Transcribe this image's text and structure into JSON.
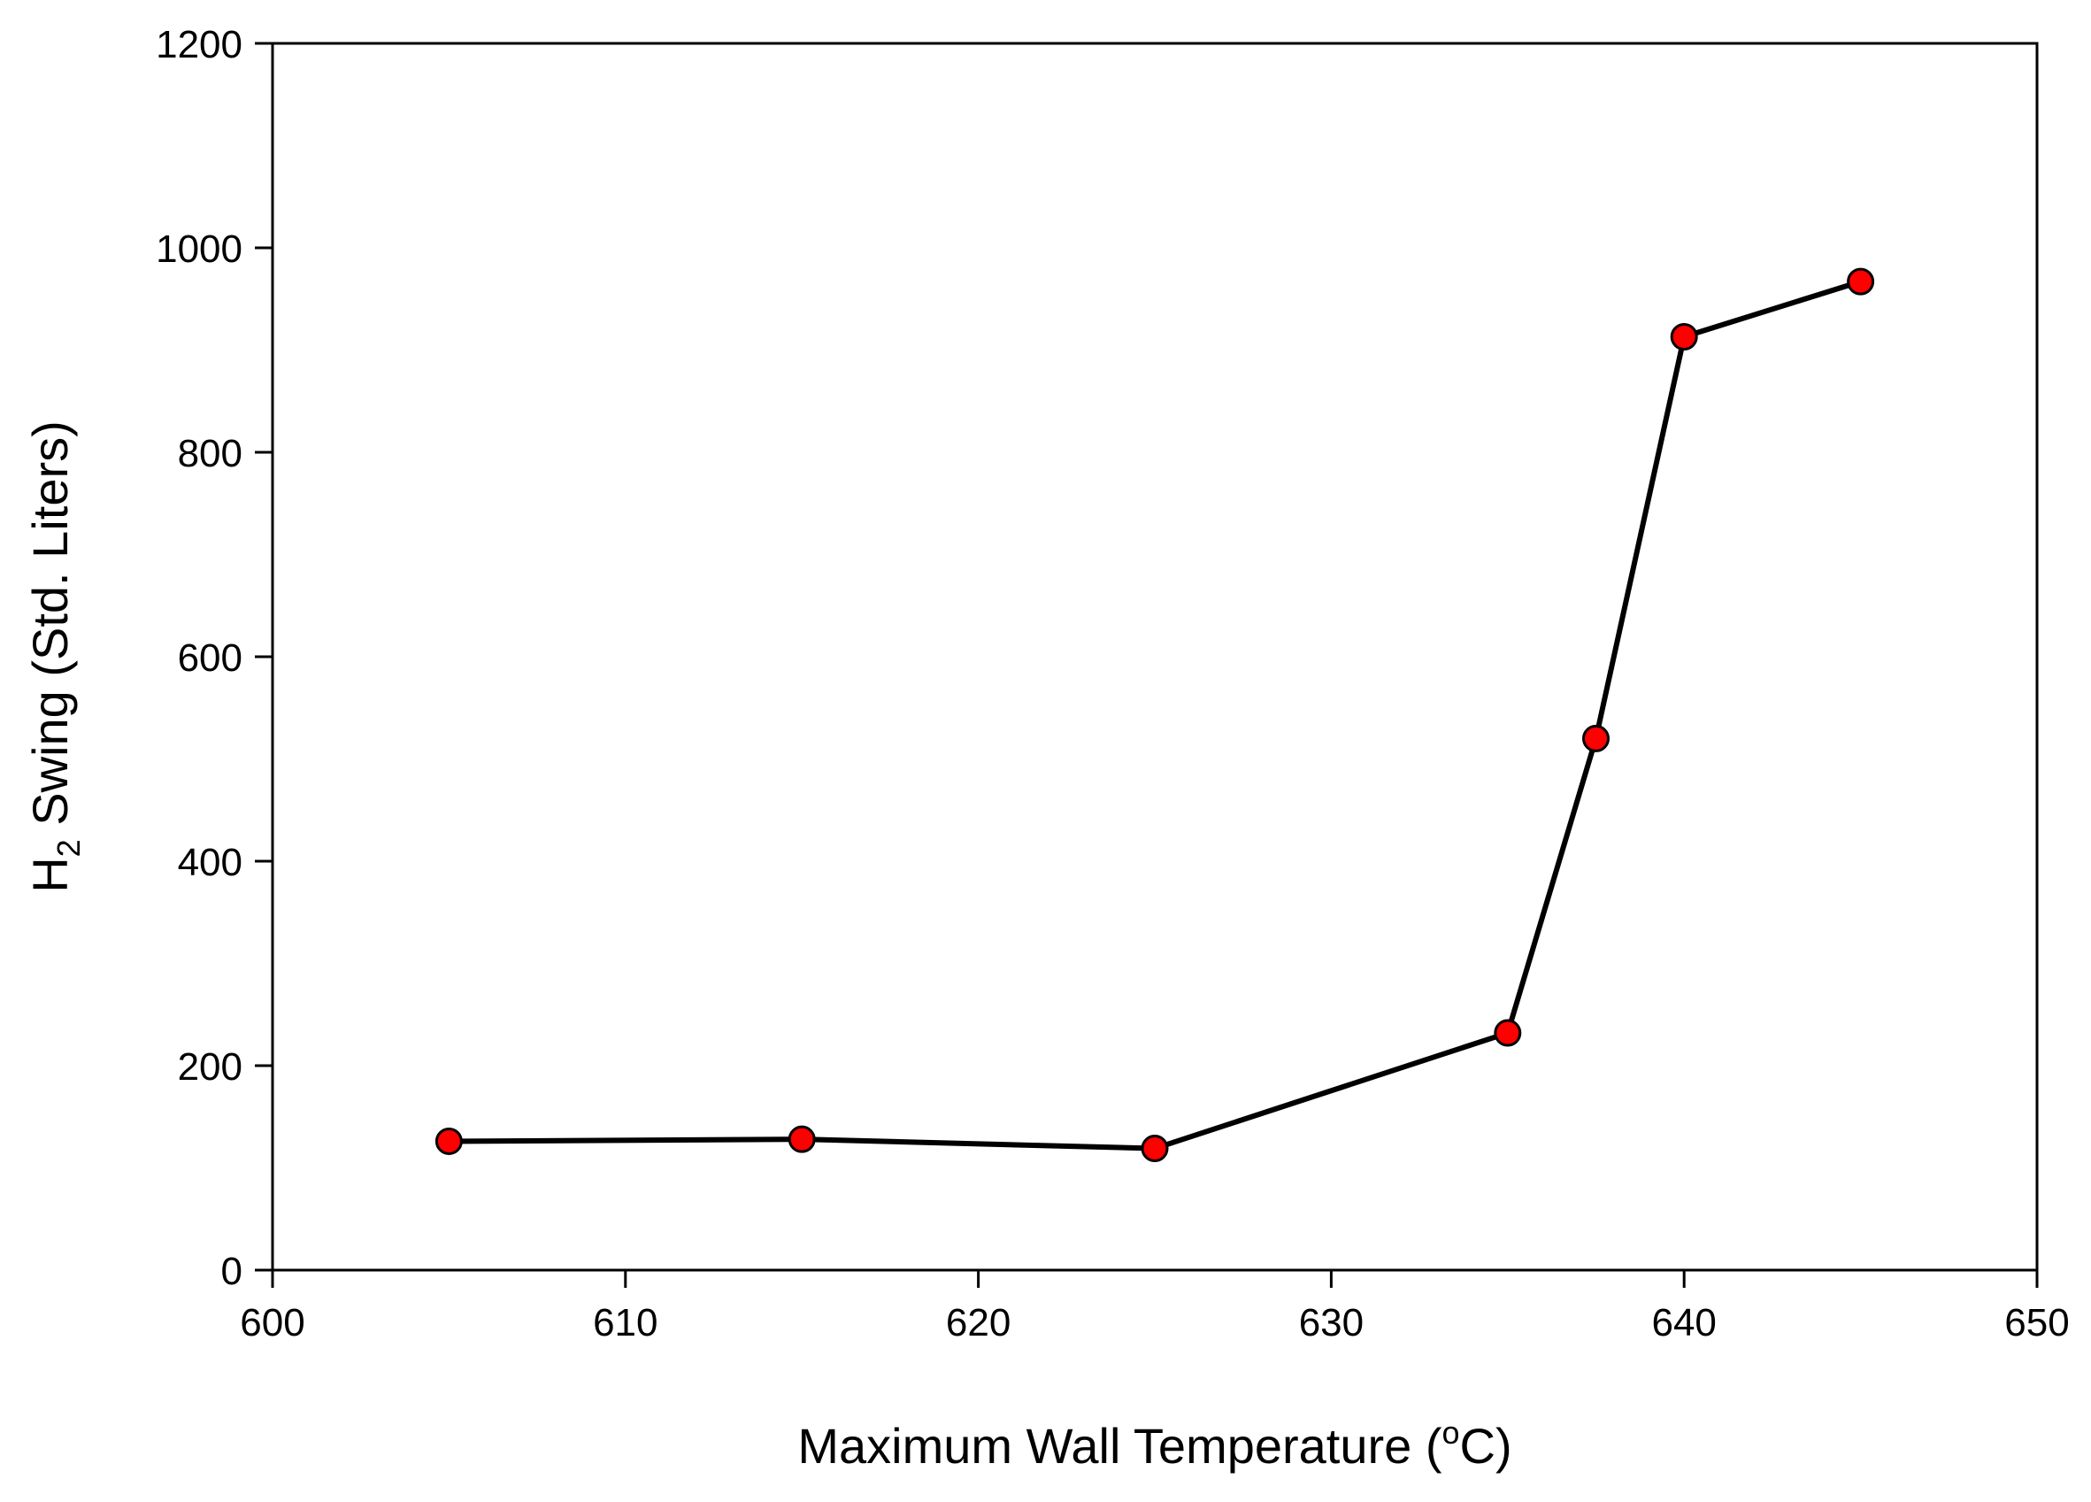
{
  "chart_data": {
    "type": "line",
    "title": "",
    "xlabel": {
      "prefix": "Maximum Wall Temperature (",
      "superscript": "o",
      "suffix": "C)"
    },
    "ylabel": {
      "prefix": "H",
      "subscript": "2",
      "suffix": " Swing (Std. Liters)"
    },
    "xlim": [
      600,
      650
    ],
    "ylim": [
      0,
      1200
    ],
    "xticks": [
      600,
      610,
      620,
      630,
      640,
      650
    ],
    "yticks": [
      0,
      200,
      400,
      600,
      800,
      1000,
      1200
    ],
    "grid": false,
    "legend": "none",
    "series": [
      {
        "x": [
          605,
          615,
          625,
          635,
          637.5,
          640,
          645
        ],
        "y": [
          126,
          128,
          119,
          232,
          520,
          913,
          967
        ],
        "line_color": "#000000",
        "marker": "circle",
        "marker_color": "#ff0000",
        "marker_edge_color": "#000000"
      }
    ]
  }
}
